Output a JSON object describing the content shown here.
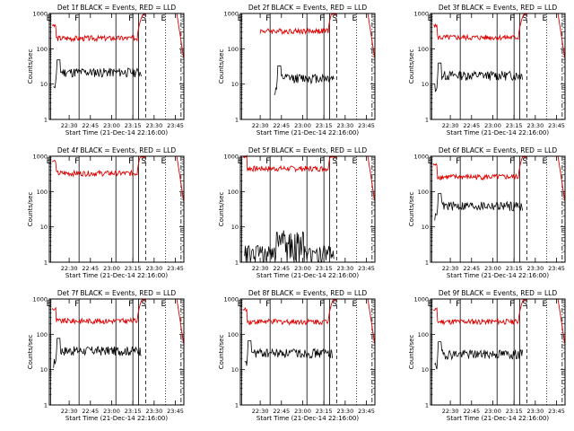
{
  "chart_data": {
    "type": "line",
    "shared": {
      "xlabel": "Start Time (21-Dec-14 22:16:00)",
      "ylabel": "Counts/sec",
      "y_scale": "log",
      "ylim": [
        1,
        1000
      ],
      "y_ticks": [
        "1",
        "10",
        "100",
        "1000"
      ],
      "x_ticks": [
        "22:30",
        "22:45",
        "23:00",
        "23:15",
        "23:30",
        "23:45"
      ],
      "xlim_minutes_after_start": [
        0,
        95
      ],
      "markers": [
        {
          "label": "E",
          "minute": 1,
          "style": "solid"
        },
        {
          "label": "F",
          "minute": 21,
          "style": "solid"
        },
        {
          "label": "",
          "minute": 47,
          "style": "solid"
        },
        {
          "label": "F",
          "minute": 59,
          "style": "solid"
        },
        {
          "label": "",
          "minute": 63,
          "style": "solid"
        },
        {
          "label": "S",
          "minute": 68,
          "style": "dashed"
        },
        {
          "label": "E",
          "minute": 82,
          "style": "dotted"
        },
        {
          "label": "",
          "minute": 93,
          "style": "dashdot"
        }
      ],
      "series_colors": {
        "events": "#000000",
        "lld": "#e00000"
      }
    },
    "panels": [
      {
        "title": "Det 1f BLACK = Events, RED = LLD",
        "lld_level": 200,
        "events_level": 22,
        "events_start_minute": 3,
        "events_end_minute": 65,
        "events_spiky": false
      },
      {
        "title": "Det 2f BLACK = Events, RED = LLD",
        "lld_level": 320,
        "events_level": 15,
        "events_start_minute": 24,
        "events_end_minute": 66,
        "events_spiky": false
      },
      {
        "title": "Det 3f BLACK = Events, RED = LLD",
        "lld_level": 210,
        "events_level": 18,
        "events_start_minute": 3,
        "events_end_minute": 65,
        "events_spiky": false
      },
      {
        "title": "Det 4f BLACK = Events, RED = LLD",
        "lld_level": 330,
        "events_level": 0,
        "events_start_minute": 0,
        "events_end_minute": 0,
        "events_spiky": false
      },
      {
        "title": "Det 5f BLACK = Events, RED = LLD",
        "lld_level": 450,
        "events_level": 3,
        "events_start_minute": 3,
        "events_end_minute": 66,
        "events_spiky": true
      },
      {
        "title": "Det 6f BLACK = Events, RED = LLD",
        "lld_level": 260,
        "events_level": 40,
        "events_start_minute": 3,
        "events_end_minute": 65,
        "events_spiky": false
      },
      {
        "title": "Det 7f BLACK = Events, RED = LLD",
        "lld_level": 240,
        "events_level": 35,
        "events_start_minute": 3,
        "events_end_minute": 65,
        "events_spiky": false
      },
      {
        "title": "Det 8f BLACK = Events, RED = LLD",
        "lld_level": 230,
        "events_level": 30,
        "events_start_minute": 3,
        "events_end_minute": 65,
        "events_spiky": false
      },
      {
        "title": "Det 9f BLACK = Events, RED = LLD",
        "lld_level": 230,
        "events_level": 28,
        "events_start_minute": 3,
        "events_end_minute": 65,
        "events_spiky": false
      }
    ]
  }
}
